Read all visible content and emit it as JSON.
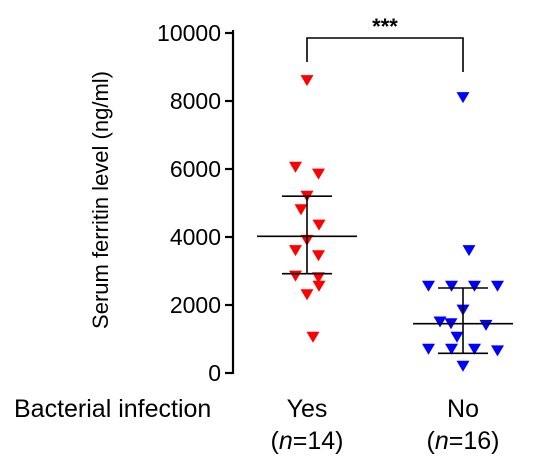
{
  "chart_data": {
    "type": "scatter",
    "ylabel": "Serum ferritin level (ng/ml)",
    "ylim": [
      0,
      10000
    ],
    "yticks": [
      "0",
      "2000",
      "4000",
      "6000",
      "8000",
      "10000"
    ],
    "group_label": "Bacterial infection",
    "significance": "***",
    "categories": [
      {
        "label": "Yes",
        "n_prefix": "(",
        "n_italic": "n",
        "n_suffix": "=14)",
        "color": "#ff0000",
        "marker": "triangle-down",
        "values": [
          8600,
          6050,
          5850,
          5200,
          4800,
          4350,
          3900,
          3600,
          3450,
          2850,
          2800,
          2550,
          2300,
          1050
        ],
        "mean": 4020,
        "sd_low": 2920,
        "sd_high": 5200
      },
      {
        "label": "No",
        "n_prefix": "(",
        "n_italic": "n",
        "n_suffix": "=16)",
        "color": "#0000ff",
        "marker": "triangle-down",
        "values": [
          8100,
          3600,
          2550,
          2550,
          2550,
          2550,
          1850,
          1500,
          1450,
          1400,
          1050,
          700,
          700,
          700,
          650,
          200
        ],
        "mean": 1450,
        "sd_low": 580,
        "sd_high": 2500
      }
    ]
  }
}
